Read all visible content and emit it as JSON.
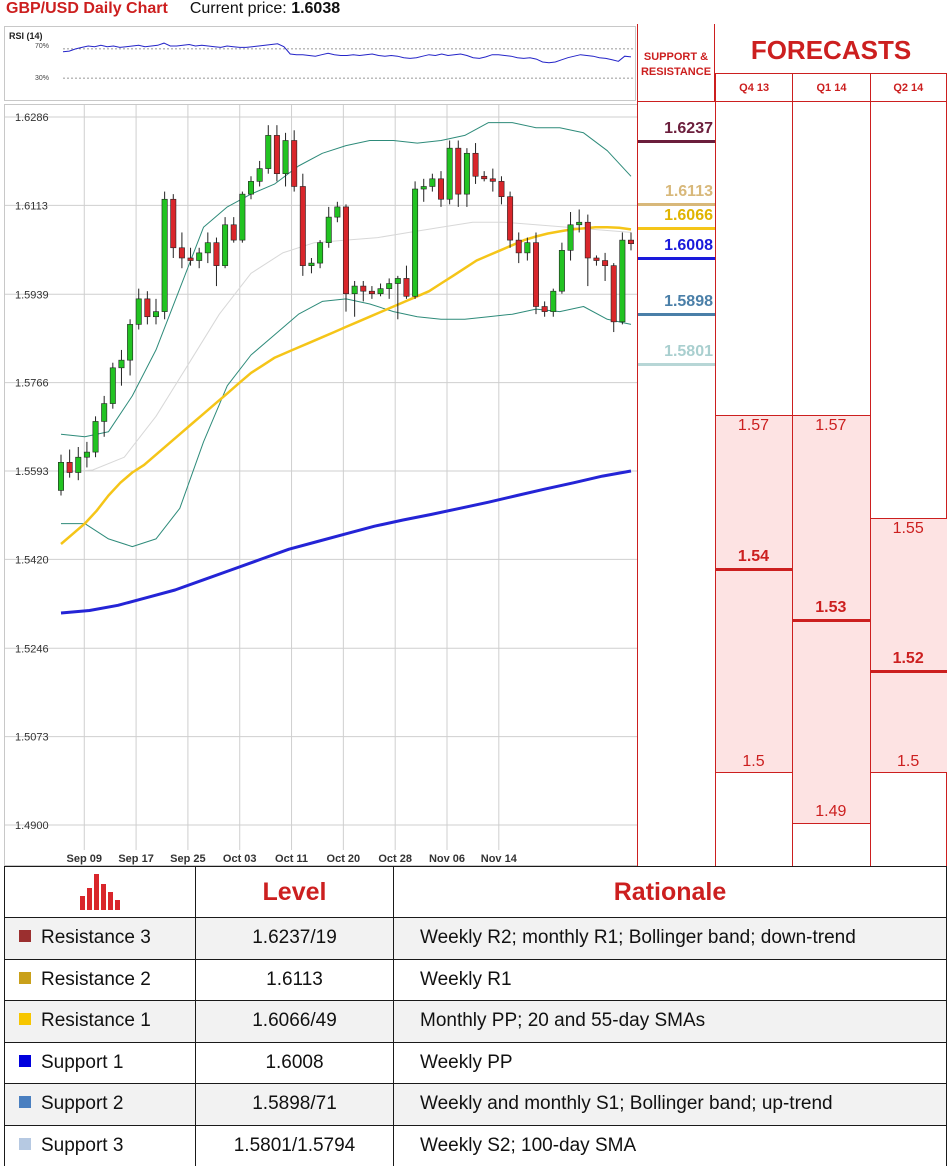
{
  "header": {
    "title": "GBP/USD Daily Chart",
    "price_label": "Current price:",
    "price_value": "1.6038"
  },
  "colors": {
    "accent": "#cc1f1f",
    "sma20": "#f5c518",
    "sma100": "#2424d6",
    "bollinger": "#2e8b7a",
    "candle_up": "#22c322",
    "candle_down": "#d9262b"
  },
  "chart_data": [
    {
      "type": "line",
      "title": "RSI (14)",
      "levels": [
        "70%",
        "30%"
      ],
      "level_values": [
        70,
        30
      ],
      "ylim": [
        0,
        100
      ],
      "series": [
        {
          "values": [
            66,
            67,
            70,
            72,
            74,
            73,
            75,
            73,
            74,
            72,
            73,
            74,
            75,
            73,
            74,
            75,
            78,
            74,
            74,
            75,
            76,
            74,
            75,
            74,
            73,
            72,
            74,
            73,
            72,
            72,
            73,
            74,
            75,
            76,
            77,
            73,
            63,
            62,
            62,
            61,
            60,
            62,
            64,
            62,
            61,
            61,
            62,
            61,
            62,
            63,
            61,
            60,
            61,
            60,
            58,
            57,
            58,
            60,
            62,
            61,
            63,
            61,
            62,
            63,
            61,
            58,
            57,
            59,
            62,
            62,
            61,
            60,
            58,
            57,
            58,
            56,
            52,
            51,
            52,
            55,
            58,
            60,
            62,
            61,
            60,
            58,
            57,
            55,
            53,
            60,
            59
          ]
        }
      ]
    },
    {
      "type": "candlestick",
      "title": "GBP/USD Daily Chart",
      "y_ticks": [
        "1.6286",
        "1.6113",
        "1.5939",
        "1.5766",
        "1.5593",
        "1.5420",
        "1.5246",
        "1.5073",
        "1.4900"
      ],
      "ylim": [
        1.49,
        1.6286
      ],
      "x_ticks": [
        "Sep 09",
        "Sep 17",
        "Sep 25",
        "Oct 03",
        "Oct 11",
        "Oct 20",
        "Oct 28",
        "Nov 06",
        "Nov 14"
      ],
      "x_tick_index": [
        2,
        8,
        14,
        20,
        26,
        32,
        38,
        44,
        50
      ],
      "candles": [
        {
          "o": 1.5555,
          "h": 1.5625,
          "l": 1.5545,
          "c": 1.561
        },
        {
          "o": 1.561,
          "h": 1.5635,
          "l": 1.558,
          "c": 1.559
        },
        {
          "o": 1.559,
          "h": 1.564,
          "l": 1.5575,
          "c": 1.562
        },
        {
          "o": 1.562,
          "h": 1.565,
          "l": 1.56,
          "c": 1.563
        },
        {
          "o": 1.563,
          "h": 1.57,
          "l": 1.562,
          "c": 1.569
        },
        {
          "o": 1.569,
          "h": 1.574,
          "l": 1.566,
          "c": 1.5725
        },
        {
          "o": 1.5725,
          "h": 1.5805,
          "l": 1.5715,
          "c": 1.5795
        },
        {
          "o": 1.5795,
          "h": 1.583,
          "l": 1.576,
          "c": 1.581
        },
        {
          "o": 1.581,
          "h": 1.589,
          "l": 1.578,
          "c": 1.588
        },
        {
          "o": 1.588,
          "h": 1.595,
          "l": 1.587,
          "c": 1.593
        },
        {
          "o": 1.593,
          "h": 1.5945,
          "l": 1.588,
          "c": 1.5895
        },
        {
          "o": 1.5895,
          "h": 1.593,
          "l": 1.588,
          "c": 1.5905
        },
        {
          "o": 1.5905,
          "h": 1.614,
          "l": 1.589,
          "c": 1.6125
        },
        {
          "o": 1.6125,
          "h": 1.6135,
          "l": 1.601,
          "c": 1.603
        },
        {
          "o": 1.603,
          "h": 1.606,
          "l": 1.599,
          "c": 1.601
        },
        {
          "o": 1.601,
          "h": 1.603,
          "l": 1.5995,
          "c": 1.6005
        },
        {
          "o": 1.6005,
          "h": 1.603,
          "l": 1.599,
          "c": 1.602
        },
        {
          "o": 1.602,
          "h": 1.606,
          "l": 1.6,
          "c": 1.604
        },
        {
          "o": 1.604,
          "h": 1.605,
          "l": 1.5955,
          "c": 1.5995
        },
        {
          "o": 1.5995,
          "h": 1.609,
          "l": 1.599,
          "c": 1.6075
        },
        {
          "o": 1.6075,
          "h": 1.609,
          "l": 1.604,
          "c": 1.6045
        },
        {
          "o": 1.6045,
          "h": 1.614,
          "l": 1.604,
          "c": 1.6135
        },
        {
          "o": 1.6135,
          "h": 1.617,
          "l": 1.6125,
          "c": 1.616
        },
        {
          "o": 1.616,
          "h": 1.62,
          "l": 1.615,
          "c": 1.6185
        },
        {
          "o": 1.6185,
          "h": 1.627,
          "l": 1.6175,
          "c": 1.625
        },
        {
          "o": 1.625,
          "h": 1.627,
          "l": 1.616,
          "c": 1.6175
        },
        {
          "o": 1.6175,
          "h": 1.6255,
          "l": 1.615,
          "c": 1.624
        },
        {
          "o": 1.624,
          "h": 1.626,
          "l": 1.614,
          "c": 1.615
        },
        {
          "o": 1.615,
          "h": 1.6175,
          "l": 1.5975,
          "c": 1.5995
        },
        {
          "o": 1.5995,
          "h": 1.601,
          "l": 1.598,
          "c": 1.6
        },
        {
          "o": 1.6,
          "h": 1.6045,
          "l": 1.599,
          "c": 1.604
        },
        {
          "o": 1.604,
          "h": 1.611,
          "l": 1.603,
          "c": 1.609
        },
        {
          "o": 1.609,
          "h": 1.612,
          "l": 1.608,
          "c": 1.611
        },
        {
          "o": 1.611,
          "h": 1.6115,
          "l": 1.5905,
          "c": 1.594
        },
        {
          "o": 1.594,
          "h": 1.5965,
          "l": 1.5895,
          "c": 1.5955
        },
        {
          "o": 1.5955,
          "h": 1.5965,
          "l": 1.5925,
          "c": 1.5945
        },
        {
          "o": 1.5945,
          "h": 1.5955,
          "l": 1.593,
          "c": 1.594
        },
        {
          "o": 1.594,
          "h": 1.596,
          "l": 1.5935,
          "c": 1.595
        },
        {
          "o": 1.595,
          "h": 1.597,
          "l": 1.593,
          "c": 1.596
        },
        {
          "o": 1.596,
          "h": 1.5975,
          "l": 1.589,
          "c": 1.597
        },
        {
          "o": 1.597,
          "h": 1.5995,
          "l": 1.593,
          "c": 1.5935
        },
        {
          "o": 1.5935,
          "h": 1.616,
          "l": 1.593,
          "c": 1.6145
        },
        {
          "o": 1.6145,
          "h": 1.6165,
          "l": 1.612,
          "c": 1.615
        },
        {
          "o": 1.615,
          "h": 1.6175,
          "l": 1.614,
          "c": 1.6165
        },
        {
          "o": 1.6165,
          "h": 1.618,
          "l": 1.611,
          "c": 1.6125
        },
        {
          "o": 1.6125,
          "h": 1.624,
          "l": 1.6115,
          "c": 1.6225
        },
        {
          "o": 1.6225,
          "h": 1.624,
          "l": 1.611,
          "c": 1.6135
        },
        {
          "o": 1.6135,
          "h": 1.6225,
          "l": 1.611,
          "c": 1.6215
        },
        {
          "o": 1.6215,
          "h": 1.6235,
          "l": 1.6155,
          "c": 1.617
        },
        {
          "o": 1.617,
          "h": 1.618,
          "l": 1.616,
          "c": 1.6165
        },
        {
          "o": 1.6165,
          "h": 1.6185,
          "l": 1.614,
          "c": 1.616
        },
        {
          "o": 1.616,
          "h": 1.617,
          "l": 1.6115,
          "c": 1.613
        },
        {
          "o": 1.613,
          "h": 1.614,
          "l": 1.603,
          "c": 1.6045
        },
        {
          "o": 1.6045,
          "h": 1.606,
          "l": 1.6,
          "c": 1.602
        },
        {
          "o": 1.602,
          "h": 1.605,
          "l": 1.6005,
          "c": 1.604
        },
        {
          "o": 1.604,
          "h": 1.606,
          "l": 1.59,
          "c": 1.5915
        },
        {
          "o": 1.5915,
          "h": 1.5925,
          "l": 1.5895,
          "c": 1.5905
        },
        {
          "o": 1.5905,
          "h": 1.595,
          "l": 1.5895,
          "c": 1.5945
        },
        {
          "o": 1.5945,
          "h": 1.604,
          "l": 1.594,
          "c": 1.6025
        },
        {
          "o": 1.6025,
          "h": 1.61,
          "l": 1.6005,
          "c": 1.6075
        },
        {
          "o": 1.6075,
          "h": 1.6105,
          "l": 1.606,
          "c": 1.608
        },
        {
          "o": 1.608,
          "h": 1.6095,
          "l": 1.5955,
          "c": 1.601
        },
        {
          "o": 1.601,
          "h": 1.6015,
          "l": 1.5995,
          "c": 1.6005
        },
        {
          "o": 1.6005,
          "h": 1.602,
          "l": 1.5965,
          "c": 1.5995
        },
        {
          "o": 1.5995,
          "h": 1.6,
          "l": 1.5865,
          "c": 1.5885
        },
        {
          "o": 1.5885,
          "h": 1.606,
          "l": 1.588,
          "c": 1.6045
        },
        {
          "o": 1.6045,
          "h": 1.606,
          "l": 1.6025,
          "c": 1.6038
        }
      ],
      "sma20": [
        1.545,
        1.547,
        1.549,
        1.5515,
        1.5545,
        1.557,
        1.559,
        1.5605,
        1.5625,
        1.5645,
        1.5665,
        1.5685,
        1.5705,
        1.5725,
        1.5745,
        1.5765,
        1.5785,
        1.58,
        1.5815,
        1.5825,
        1.5835,
        1.5845,
        1.5855,
        1.5865,
        1.5875,
        1.5885,
        1.5895,
        1.5905,
        1.5915,
        1.5925,
        1.5935,
        1.5945,
        1.596,
        1.5975,
        1.599,
        1.6005,
        1.6015,
        1.6025,
        1.6035,
        1.6045,
        1.6052,
        1.6058,
        1.6062,
        1.6066,
        1.6068,
        1.607,
        1.607,
        1.6069,
        1.6066
      ],
      "sma100": [
        1.5315,
        1.532,
        1.533,
        1.5345,
        1.536,
        1.538,
        1.54,
        1.542,
        1.544,
        1.5455,
        1.547,
        1.5485,
        1.5497,
        1.5508,
        1.552,
        1.5532,
        1.5545,
        1.5558,
        1.557,
        1.5583,
        1.5593
      ],
      "bb_upper": [
        1.5665,
        1.566,
        1.567,
        1.574,
        1.583,
        1.595,
        1.607,
        1.611,
        1.6135,
        1.6155,
        1.619,
        1.6215,
        1.623,
        1.624,
        1.624,
        1.6235,
        1.624,
        1.625,
        1.6275,
        1.6275,
        1.6265,
        1.6265,
        1.6255,
        1.622,
        1.617
      ],
      "bb_lower": [
        1.549,
        1.549,
        1.546,
        1.5445,
        1.546,
        1.552,
        1.565,
        1.576,
        1.582,
        1.586,
        1.59,
        1.5925,
        1.593,
        1.592,
        1.5905,
        1.5895,
        1.589,
        1.589,
        1.5895,
        1.59,
        1.591,
        1.5905,
        1.5915,
        1.589,
        1.588
      ],
      "bb_mid": [
        1.559,
        1.5595,
        1.562,
        1.57,
        1.58,
        1.59,
        1.598,
        1.602,
        1.604,
        1.6045,
        1.605,
        1.606,
        1.607,
        1.608,
        1.608,
        1.6075,
        1.607,
        1.6065,
        1.606
      ],
      "sr_lines": [
        {
          "name": "Resistance 3",
          "value": 1.6237,
          "label": "1.6237",
          "color": "#6b1e3c"
        },
        {
          "name": "Resistance 2",
          "value": 1.6113,
          "label": "1.6113",
          "color": "#d8b87a"
        },
        {
          "name": "Resistance 1",
          "value": 1.6066,
          "label": "1.6066",
          "color": "#f5c518"
        },
        {
          "name": "Support 1",
          "value": 1.6008,
          "label": "1.6008",
          "color": "#1a1adb"
        },
        {
          "name": "Support 2",
          "value": 1.5898,
          "label": "1.5898",
          "color": "#4a7fa8"
        },
        {
          "name": "Support 3",
          "value": 1.5801,
          "label": "1.5801",
          "color": "#b7d6d6"
        }
      ]
    },
    {
      "type": "range",
      "title": "FORECASTS",
      "categories": [
        "Q4 13",
        "Q1 14",
        "Q2 14"
      ],
      "series": [
        {
          "name": "high",
          "values": [
            1.57,
            1.57,
            1.55
          ],
          "labels": [
            "1.57",
            "1.57",
            "1.55"
          ]
        },
        {
          "name": "mid",
          "values": [
            1.54,
            1.53,
            1.52
          ],
          "labels": [
            "1.54",
            "1.53",
            "1.52"
          ]
        },
        {
          "name": "low",
          "values": [
            1.5,
            1.49,
            1.5
          ],
          "labels": [
            "1.5",
            "1.49",
            "1.5"
          ]
        }
      ]
    }
  ],
  "forecast_panel": {
    "support_resistance_title": "SUPPORT & RESISTANCE",
    "title": "FORECASTS"
  },
  "table": {
    "headers": {
      "level": "Level",
      "rationale": "Rationale"
    },
    "rows": [
      {
        "name": "Resistance 3",
        "color": "#9b2f2f",
        "level": "1.6237/19",
        "rationale": "Weekly R2; monthly R1; Bollinger band; down-trend"
      },
      {
        "name": "Resistance 2",
        "color": "#c9a01a",
        "level": "1.6113",
        "rationale": "Weekly R1"
      },
      {
        "name": "Resistance 1",
        "color": "#f7c600",
        "level": "1.6066/49",
        "rationale": "Monthly PP; 20 and 55-day SMAs"
      },
      {
        "name": "Support 1",
        "color": "#0000dd",
        "level": "1.6008",
        "rationale": "Weekly PP"
      },
      {
        "name": "Support 2",
        "color": "#4a7fc0",
        "level": "1.5898/71",
        "rationale": "Weekly and monthly S1; Bollinger band; up-trend"
      },
      {
        "name": "Support 3",
        "color": "#b6c9e2",
        "level": "1.5801/1.5794",
        "rationale": "Weekly S2; 100-day SMA"
      }
    ]
  }
}
